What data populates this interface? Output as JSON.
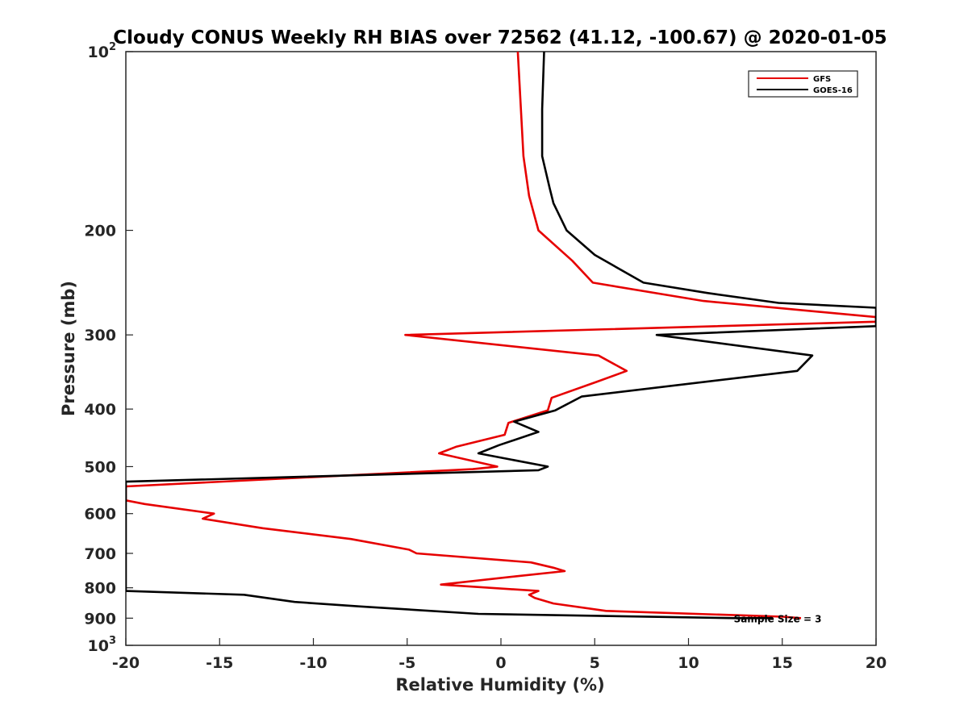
{
  "chart_data": {
    "type": "line",
    "title": "Cloudy CONUS Weekly RH BIAS over 72562 (41.12, -100.67) @ 2020-01-05",
    "xlabel": "Relative Humidity (%)",
    "ylabel": "Pressure (mb)",
    "xlim": [
      -20,
      20
    ],
    "ylim": [
      100,
      1000
    ],
    "y_scale": "log",
    "y_reversed": true,
    "grid": false,
    "legend_position": "top-right",
    "x_ticks": [
      {
        "value": -20,
        "label": "-20"
      },
      {
        "value": -15,
        "label": "-15"
      },
      {
        "value": -10,
        "label": "-10"
      },
      {
        "value": -5,
        "label": "-5"
      },
      {
        "value": 0,
        "label": "0"
      },
      {
        "value": 5,
        "label": "5"
      },
      {
        "value": 10,
        "label": "10"
      },
      {
        "value": 15,
        "label": "15"
      },
      {
        "value": 20,
        "label": "20"
      }
    ],
    "y_ticks": [
      {
        "value": 100,
        "base": "10",
        "exp": "2"
      },
      {
        "value": 200,
        "base": "200",
        "exp": ""
      },
      {
        "value": 300,
        "base": "300",
        "exp": ""
      },
      {
        "value": 400,
        "base": "400",
        "exp": ""
      },
      {
        "value": 500,
        "base": "500",
        "exp": ""
      },
      {
        "value": 600,
        "base": "600",
        "exp": ""
      },
      {
        "value": 700,
        "base": "700",
        "exp": ""
      },
      {
        "value": 800,
        "base": "800",
        "exp": ""
      },
      {
        "value": 900,
        "base": "900",
        "exp": ""
      },
      {
        "value": 1000,
        "base": "10",
        "exp": "3"
      }
    ],
    "series": [
      {
        "name": "GFS",
        "color": "#e60000",
        "points": [
          {
            "x": 0.9,
            "y": 100
          },
          {
            "x": 1.2,
            "y": 150
          },
          {
            "x": 1.5,
            "y": 175
          },
          {
            "x": 2.0,
            "y": 200
          },
          {
            "x": 3.8,
            "y": 225
          },
          {
            "x": 4.9,
            "y": 245
          },
          {
            "x": 10.8,
            "y": 263
          },
          {
            "x": 20,
            "y": 280
          },
          {
            "x": 20,
            "y": 285
          },
          {
            "x": -5.1,
            "y": 300
          },
          {
            "x": 5.2,
            "y": 325
          },
          {
            "x": 6.7,
            "y": 345
          },
          {
            "x": 5.1,
            "y": 360
          },
          {
            "x": 2.7,
            "y": 383
          },
          {
            "x": 2.5,
            "y": 402
          },
          {
            "x": 0.4,
            "y": 422
          },
          {
            "x": 0.2,
            "y": 442
          },
          {
            "x": -2.4,
            "y": 463
          },
          {
            "x": -3.3,
            "y": 475
          },
          {
            "x": -0.2,
            "y": 500
          },
          {
            "x": -1.5,
            "y": 505
          },
          {
            "x": -20,
            "y": 540
          },
          {
            "x": -20,
            "y": 570
          },
          {
            "x": -19,
            "y": 578
          },
          {
            "x": -15.3,
            "y": 600
          },
          {
            "x": -15.9,
            "y": 612
          },
          {
            "x": -12.7,
            "y": 635
          },
          {
            "x": -8.0,
            "y": 662
          },
          {
            "x": -4.9,
            "y": 690
          },
          {
            "x": -4.5,
            "y": 700
          },
          {
            "x": 1.6,
            "y": 725
          },
          {
            "x": 2.8,
            "y": 740
          },
          {
            "x": 3.4,
            "y": 750
          },
          {
            "x": 0.8,
            "y": 765
          },
          {
            "x": -3.2,
            "y": 790
          },
          {
            "x": 2.0,
            "y": 810
          },
          {
            "x": 1.5,
            "y": 822
          },
          {
            "x": 1.8,
            "y": 832
          },
          {
            "x": 2.8,
            "y": 850
          },
          {
            "x": 5.6,
            "y": 875
          },
          {
            "x": 15.0,
            "y": 895
          },
          {
            "x": 16.0,
            "y": 900
          }
        ]
      },
      {
        "name": "GOES-16",
        "color": "#000000",
        "points": [
          {
            "x": 2.3,
            "y": 100
          },
          {
            "x": 2.2,
            "y": 125
          },
          {
            "x": 2.2,
            "y": 150
          },
          {
            "x": 2.6,
            "y": 170
          },
          {
            "x": 2.8,
            "y": 180
          },
          {
            "x": 3.5,
            "y": 200
          },
          {
            "x": 5.0,
            "y": 220
          },
          {
            "x": 7.6,
            "y": 245
          },
          {
            "x": 11.0,
            "y": 255
          },
          {
            "x": 14.8,
            "y": 265
          },
          {
            "x": 20,
            "y": 270
          },
          {
            "x": 20,
            "y": 290
          },
          {
            "x": 8.3,
            "y": 300
          },
          {
            "x": 16.6,
            "y": 325
          },
          {
            "x": 15.8,
            "y": 345
          },
          {
            "x": 4.3,
            "y": 381
          },
          {
            "x": 2.9,
            "y": 402
          },
          {
            "x": 0.7,
            "y": 420
          },
          {
            "x": 2.0,
            "y": 437
          },
          {
            "x": -0.1,
            "y": 460
          },
          {
            "x": -1.2,
            "y": 475
          },
          {
            "x": 2.5,
            "y": 500
          },
          {
            "x": 2.0,
            "y": 507
          },
          {
            "x": -20,
            "y": 530
          },
          {
            "x": -20,
            "y": 810
          },
          {
            "x": -13.7,
            "y": 822
          },
          {
            "x": -11.0,
            "y": 845
          },
          {
            "x": -7.5,
            "y": 860
          },
          {
            "x": -1.2,
            "y": 885
          },
          {
            "x": 12.5,
            "y": 900
          },
          {
            "x": 14.5,
            "y": 900
          }
        ]
      }
    ],
    "annotations": [
      {
        "text": "Sample Size = 3",
        "x": 12.5,
        "y": 900
      }
    ]
  }
}
